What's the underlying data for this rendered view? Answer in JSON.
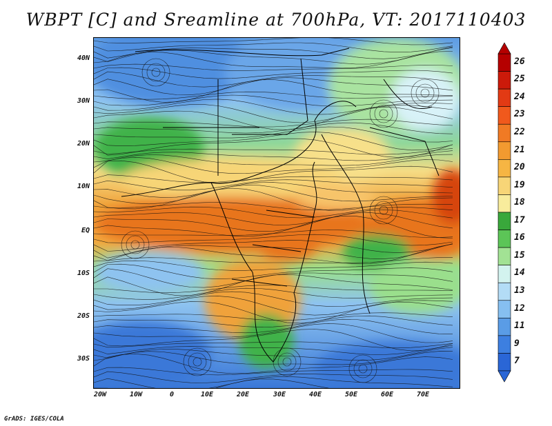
{
  "title": "WBPT [C] and Sreamline at 700hPa, VT: 2017110403",
  "footer": "GrADS: IGES/COLA",
  "map": {
    "lat_labels": [
      "40N",
      "30N",
      "20N",
      "10N",
      "EQ",
      "10S",
      "20S",
      "30S"
    ],
    "lon_labels": [
      "20W",
      "10W",
      "0",
      "10E",
      "20E",
      "30E",
      "40E",
      "50E",
      "60E",
      "70E"
    ],
    "colors": {
      "cold": "#3a78d8",
      "cool": "#8ec3f0",
      "mild": "#d8f2f8",
      "green": "#3fb24a",
      "lightgreen": "#9adf8c",
      "yellow": "#f7e08a",
      "orange": "#f2a033",
      "deeporange": "#e8751f",
      "red": "#c8290f",
      "streamline": "#111111",
      "boundary": "#000000"
    }
  },
  "colorbar": {
    "labels": [
      "26",
      "25",
      "24",
      "23",
      "22",
      "21",
      "20",
      "19",
      "18",
      "17",
      "16",
      "15",
      "14",
      "13",
      "12",
      "11",
      "9",
      "7"
    ],
    "colors": [
      "#b50000",
      "#cc1a0a",
      "#e23a14",
      "#f0591c",
      "#f07a24",
      "#f29a30",
      "#f6b543",
      "#f7d577",
      "#f8ec9c",
      "#39a83b",
      "#5cc557",
      "#a2e294",
      "#d3f3ef",
      "#b3dcf6",
      "#86bff0",
      "#5a9ce6",
      "#3d7fe0",
      "#2a66d6"
    ]
  }
}
